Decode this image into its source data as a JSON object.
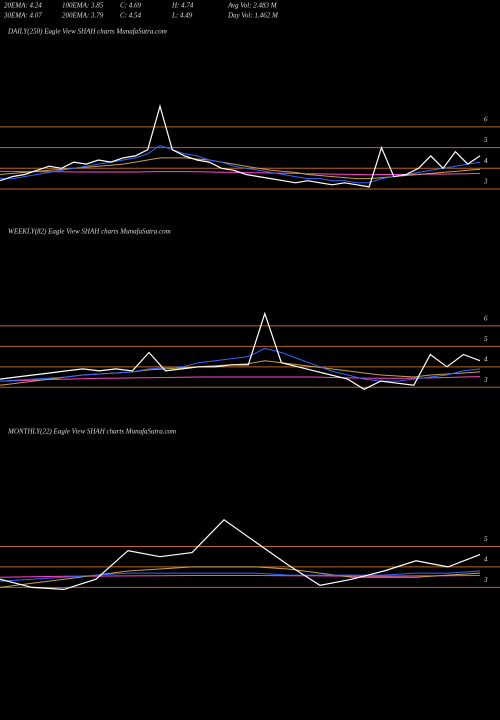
{
  "header": {
    "rows": [
      [
        "20EMA: 4.24",
        "100EMA: 3.85",
        "C: 4.69",
        "H: 4.74",
        "Avg Vol: 2.483  M"
      ],
      [
        "30EMA: 4.07",
        "200EMA: 3.79",
        "C: 4.54",
        "L: 4.49",
        "Day Vol: 1.462  M"
      ]
    ]
  },
  "chart_data": [
    {
      "type": "line",
      "title": "DAILY(250) Eagle  View  SHAH charts MunafaSutra.com",
      "categories": [
        null,
        null,
        null,
        null,
        null,
        null,
        null,
        null,
        null,
        null,
        null,
        null,
        null,
        null,
        null,
        null,
        null,
        null,
        null,
        null,
        null,
        null,
        null,
        null,
        null,
        null,
        null,
        null,
        null,
        null,
        null,
        null,
        null,
        null,
        null,
        null,
        null,
        null,
        null,
        null
      ],
      "series": [
        {
          "color": "#ff44cc",
          "values": [
            3.85,
            3.85,
            3.84,
            3.84,
            3.83,
            3.83,
            3.82,
            3.82,
            3.82,
            3.82,
            3.82,
            3.82,
            3.83,
            3.84,
            3.84,
            3.84,
            3.83,
            3.82,
            3.81,
            3.8,
            3.79,
            3.78,
            3.77,
            3.76,
            3.75,
            3.74,
            3.73,
            3.72,
            3.71,
            3.7,
            3.69,
            3.7,
            3.7,
            3.7,
            3.71,
            3.72,
            3.72,
            3.73,
            3.74,
            3.75
          ]
        },
        {
          "color": "#c8a040",
          "values": [
            3.7,
            3.75,
            3.8,
            3.85,
            3.9,
            3.95,
            4.0,
            4.05,
            4.1,
            4.15,
            4.2,
            4.3,
            4.4,
            4.5,
            4.5,
            4.5,
            4.45,
            4.4,
            4.3,
            4.2,
            4.1,
            4.0,
            3.9,
            3.85,
            3.8,
            3.7,
            3.65,
            3.6,
            3.55,
            3.5,
            3.5,
            3.55,
            3.6,
            3.65,
            3.7,
            3.75,
            3.8,
            3.85,
            3.9,
            3.95
          ]
        },
        {
          "color": "#3366ff",
          "values": [
            3.5,
            3.5,
            3.6,
            3.7,
            3.8,
            3.9,
            4.0,
            4.1,
            4.2,
            4.3,
            4.4,
            4.5,
            4.7,
            5.1,
            4.9,
            4.7,
            4.6,
            4.4,
            4.3,
            4.1,
            4.0,
            3.9,
            3.8,
            3.7,
            3.6,
            3.5,
            3.5,
            3.4,
            3.4,
            3.3,
            3.3,
            3.5,
            3.6,
            3.7,
            3.8,
            3.9,
            4.0,
            4.1,
            4.2,
            4.3
          ]
        },
        {
          "color": "#ffffff",
          "values": [
            3.4,
            3.6,
            3.7,
            3.9,
            4.1,
            4.0,
            4.3,
            4.2,
            4.4,
            4.3,
            4.5,
            4.6,
            4.9,
            7.0,
            4.9,
            4.6,
            4.4,
            4.3,
            4.0,
            3.9,
            3.7,
            3.6,
            3.5,
            3.4,
            3.3,
            3.4,
            3.3,
            3.2,
            3.3,
            3.2,
            3.1,
            5.0,
            3.6,
            3.7,
            4.0,
            4.6,
            4.0,
            4.8,
            4.2,
            4.6
          ]
        }
      ],
      "ylim": [
        1.5,
        10.2
      ],
      "yticks": [
        6,
        5,
        4,
        3
      ],
      "grid": true,
      "grid_color": "#b8651b"
    },
    {
      "type": "line",
      "title": "WEEKLY(82) Eagle  View  SHAH charts MunafaSutra.com",
      "categories": [
        null,
        null,
        null,
        null,
        null,
        null,
        null,
        null,
        null,
        null,
        null,
        null,
        null,
        null,
        null,
        null,
        null,
        null,
        null,
        null,
        null,
        null,
        null,
        null,
        null,
        null,
        null,
        null,
        null,
        null
      ],
      "series": [
        {
          "color": "#ff44cc",
          "values": [
            3.3,
            3.32,
            3.35,
            3.38,
            3.4,
            3.42,
            3.44,
            3.45,
            3.46,
            3.47,
            3.48,
            3.49,
            3.5,
            3.5,
            3.5,
            3.5,
            3.5,
            3.5,
            3.5,
            3.5,
            3.48,
            3.46,
            3.45,
            3.44,
            3.44,
            3.45,
            3.46,
            3.48,
            3.5,
            3.52
          ]
        },
        {
          "color": "#c8a040",
          "values": [
            3.1,
            3.2,
            3.3,
            3.4,
            3.5,
            3.6,
            3.65,
            3.7,
            3.75,
            3.85,
            3.9,
            3.95,
            4.0,
            4.05,
            4.1,
            4.15,
            4.3,
            4.2,
            4.1,
            4.0,
            3.9,
            3.8,
            3.7,
            3.6,
            3.55,
            3.5,
            3.6,
            3.65,
            3.7,
            3.75
          ]
        },
        {
          "color": "#3366ff",
          "values": [
            3.3,
            3.35,
            3.4,
            3.45,
            3.5,
            3.6,
            3.65,
            3.7,
            3.75,
            3.9,
            3.95,
            4.0,
            4.2,
            4.3,
            4.4,
            4.5,
            4.9,
            4.7,
            4.4,
            4.1,
            3.8,
            3.6,
            3.4,
            3.3,
            3.3,
            3.4,
            3.5,
            3.6,
            3.8,
            3.9
          ]
        },
        {
          "color": "#ffffff",
          "values": [
            3.4,
            3.5,
            3.6,
            3.7,
            3.8,
            3.9,
            3.8,
            3.9,
            3.8,
            4.7,
            3.8,
            3.9,
            4.0,
            4.0,
            4.1,
            4.1,
            6.6,
            4.2,
            4.0,
            3.8,
            3.6,
            3.4,
            2.9,
            3.3,
            3.2,
            3.1,
            4.6,
            4.0,
            4.6,
            4.3
          ]
        }
      ],
      "ylim": [
        1.4,
        10.2
      ],
      "yticks": [
        6,
        5,
        4,
        3
      ],
      "grid": true,
      "grid_color": "#b8651b"
    },
    {
      "type": "line",
      "title": "MONTHLY(22) Eagle  View  SHAH charts MunafaSutra.com",
      "categories": [
        null,
        null,
        null,
        null,
        null,
        null,
        null,
        null,
        null,
        null,
        null,
        null,
        null,
        null,
        null,
        null
      ],
      "series": [
        {
          "color": "#ff44cc",
          "values": [
            3.5,
            3.52,
            3.54,
            3.55,
            3.56,
            3.57,
            3.58,
            3.58,
            3.58,
            3.57,
            3.56,
            3.55,
            3.55,
            3.56,
            3.57,
            3.58
          ]
        },
        {
          "color": "#c8a040",
          "values": [
            3.0,
            3.2,
            3.4,
            3.6,
            3.8,
            3.9,
            4.0,
            4.0,
            4.0,
            3.9,
            3.7,
            3.5,
            3.5,
            3.5,
            3.6,
            3.7
          ]
        },
        {
          "color": "#3366ff",
          "values": [
            3.3,
            3.4,
            3.5,
            3.6,
            3.7,
            3.7,
            3.7,
            3.7,
            3.7,
            3.6,
            3.6,
            3.6,
            3.6,
            3.7,
            3.7,
            3.8
          ]
        },
        {
          "color": "#ffffff",
          "values": [
            3.4,
            3.0,
            2.9,
            3.4,
            4.8,
            4.5,
            4.7,
            6.3,
            5.2,
            4.1,
            3.1,
            3.4,
            3.8,
            4.3,
            4.0,
            4.6
          ]
        }
      ],
      "ylim": [
        -2.5,
        10.2
      ],
      "yticks": [
        5,
        4,
        3
      ],
      "grid": true,
      "grid_color": "#b8651b"
    }
  ]
}
